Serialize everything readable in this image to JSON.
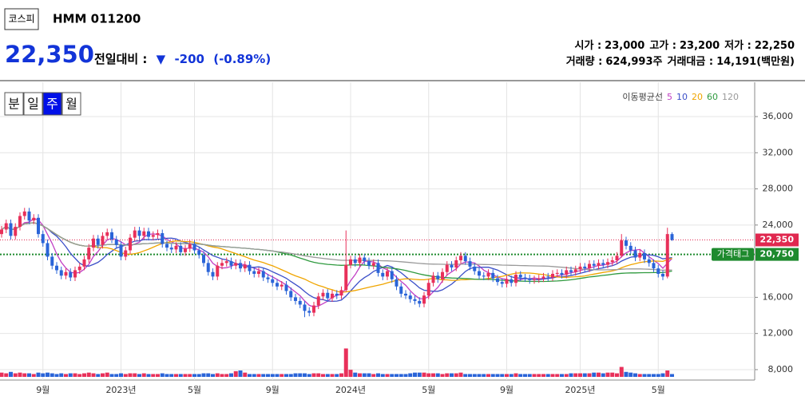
{
  "market": "코스피",
  "name": "HMM 011200",
  "price": {
    "value": 22350,
    "label": "22,350"
  },
  "change": {
    "label": "전일대비 :",
    "arrow": "▼",
    "value": -200,
    "percent": {
      "value": -0.89,
      "label": "(-0.89%)"
    }
  },
  "stats_rows": [
    [
      {
        "name": "시가 :",
        "value": "23,000"
      },
      {
        "name": "고가 :",
        "value": "23,200"
      },
      {
        "name": "저가 :",
        "value": "22,250"
      }
    ],
    [
      {
        "name": "거래량 :",
        "value": "624,993주"
      },
      {
        "name": "거래대금 :",
        "value": "14,191(백만원)"
      }
    ]
  ],
  "periods": [
    "분",
    "일",
    "주",
    "월"
  ],
  "selected_period": 2,
  "chart_data": {
    "type": "candlestick",
    "legend_title": "이동평균선",
    "moving_averages": [
      {
        "period": 5,
        "color": "#c23fc4"
      },
      {
        "period": 10,
        "color": "#3b4fc8"
      },
      {
        "period": 20,
        "color": "#f0a500"
      },
      {
        "period": 60,
        "color": "#2f9a3f"
      },
      {
        "period": 120,
        "color": "#9a9a9a"
      }
    ],
    "up_color": "#e8305a",
    "down_color": "#2a64d8",
    "ylim": [
      7200,
      39800
    ],
    "yticks": [
      {
        "value": 8000,
        "label": "8,000"
      },
      {
        "value": 12000,
        "label": "12,000"
      },
      {
        "value": 16000,
        "label": "16,000"
      },
      {
        "value": 24000,
        "label": "24,000"
      },
      {
        "value": 28000,
        "label": "28,000"
      },
      {
        "value": 32000,
        "label": "32,000"
      },
      {
        "value": 36000,
        "label": "36,000"
      }
    ],
    "grid": true,
    "price_lines": [
      {
        "value": 22350,
        "label": "22,350",
        "color": "#e0284f"
      },
      {
        "value": 20750,
        "label": "20,750",
        "tag": "가격태그",
        "color": "#1e8a2e"
      }
    ],
    "categories": [
      null,
      null,
      null,
      null,
      null,
      null,
      null,
      null,
      null,
      "9월",
      null,
      null,
      null,
      null,
      null,
      null,
      null,
      null,
      null,
      null,
      null,
      null,
      null,
      null,
      null,
      null,
      "2023년",
      null,
      null,
      null,
      null,
      null,
      null,
      null,
      null,
      null,
      null,
      null,
      null,
      null,
      null,
      null,
      "5월",
      null,
      null,
      null,
      null,
      null,
      null,
      null,
      null,
      null,
      null,
      null,
      null,
      null,
      null,
      null,
      null,
      "9월",
      null,
      null,
      null,
      null,
      null,
      null,
      null,
      null,
      null,
      null,
      null,
      null,
      null,
      null,
      null,
      null,
      "2024년",
      null,
      null,
      null,
      null,
      null,
      null,
      null,
      null,
      null,
      null,
      null,
      null,
      null,
      null,
      null,
      null,
      "5월",
      null,
      null,
      null,
      null,
      null,
      null,
      null,
      null,
      null,
      null,
      null,
      null,
      null,
      null,
      null,
      null,
      "9월",
      null,
      null,
      null,
      null,
      null,
      null,
      null,
      null,
      null,
      null,
      null,
      null,
      null,
      null,
      null,
      "2025년",
      null,
      null,
      null,
      null,
      null,
      null,
      null,
      null,
      null,
      null,
      null,
      null,
      null,
      null,
      null,
      null,
      "5월",
      null,
      null,
      null
    ],
    "open": [
      23000,
      23500,
      24200,
      22800,
      23800,
      25000,
      25500,
      24500,
      24800,
      23000,
      22000,
      20500,
      19500,
      19000,
      18400,
      18800,
      18200,
      19000,
      19400,
      20200,
      21500,
      22500,
      21800,
      22800,
      23200,
      22400,
      21800,
      20500,
      21200,
      22600,
      23400,
      22800,
      23300,
      22700,
      22900,
      23100,
      21900,
      21500,
      21300,
      21700,
      21000,
      21400,
      21900,
      21200,
      20700,
      19800,
      18800,
      18300,
      19500,
      19800,
      20000,
      19500,
      19800,
      19200,
      19600,
      18900,
      18600,
      18900,
      18200,
      18000,
      17600,
      17200,
      17400,
      16700,
      16000,
      15600,
      15200,
      14500,
      14300,
      15100,
      16100,
      16500,
      15900,
      16400,
      16200,
      16800,
      19600,
      20200,
      19800,
      20400,
      20000,
      19500,
      19800,
      18700,
      18300,
      18900,
      18000,
      17200,
      16400,
      16200,
      15800,
      15600,
      15300,
      16200,
      17600,
      18400,
      18000,
      18800,
      19600,
      19300,
      20100,
      20600,
      20000,
      19400,
      18900,
      18400,
      18300,
      18700,
      18100,
      17700,
      17500,
      18000,
      17600,
      18500,
      18200,
      18100,
      17900,
      18000,
      18100,
      18300,
      18200,
      18600,
      18700,
      18500,
      19000,
      18800,
      19100,
      19400,
      19200,
      19700,
      19500,
      19800,
      19600,
      19900,
      20100,
      20600,
      22300,
      21700,
      21200,
      20400,
      20900,
      20200,
      19800,
      19200,
      18600,
      18300,
      23000
    ],
    "high": [
      23900,
      24600,
      24600,
      24200,
      25400,
      25900,
      25900,
      25200,
      25200,
      23400,
      22400,
      20900,
      19900,
      19400,
      19200,
      19200,
      19400,
      19800,
      20600,
      21900,
      22900,
      22900,
      23200,
      23600,
      23600,
      22800,
      22200,
      21600,
      23000,
      23800,
      23800,
      23700,
      23700,
      23300,
      23500,
      23500,
      22300,
      21900,
      22100,
      22100,
      21800,
      22300,
      22300,
      21600,
      21100,
      20200,
      19200,
      19900,
      20200,
      20400,
      20400,
      20200,
      20200,
      20000,
      20000,
      19300,
      19300,
      19300,
      18600,
      18400,
      18000,
      17800,
      17800,
      17100,
      16400,
      16000,
      15600,
      14900,
      15500,
      16500,
      16900,
      16900,
      16800,
      16800,
      17200,
      23400,
      20600,
      20600,
      20800,
      20800,
      20400,
      20200,
      20200,
      19100,
      19300,
      19300,
      18400,
      17600,
      16800,
      16600,
      16200,
      16000,
      16600,
      18000,
      18800,
      18800,
      19200,
      20000,
      20000,
      20500,
      21000,
      21000,
      20400,
      19800,
      19300,
      18800,
      19100,
      19100,
      18500,
      18100,
      18400,
      18400,
      18900,
      18900,
      18600,
      18500,
      18400,
      18500,
      18700,
      18700,
      19000,
      19100,
      19100,
      19400,
      19400,
      19500,
      19800,
      19800,
      20100,
      20100,
      20200,
      20200,
      20300,
      20500,
      21000,
      23000,
      22700,
      22100,
      21600,
      21300,
      21300,
      20600,
      20200,
      19600,
      19000,
      23700,
      23200
    ],
    "low": [
      22600,
      23100,
      22400,
      22400,
      23400,
      24600,
      24100,
      24100,
      22600,
      21600,
      20100,
      19100,
      18600,
      18000,
      18000,
      17800,
      17800,
      18600,
      19000,
      19800,
      21100,
      21400,
      21400,
      22400,
      22000,
      21400,
      20100,
      20100,
      20800,
      22200,
      22400,
      22400,
      22300,
      22300,
      22500,
      21500,
      21100,
      20900,
      20900,
      20600,
      20600,
      21000,
      20800,
      20300,
      19400,
      18400,
      17900,
      17900,
      19100,
      19400,
      19100,
      19100,
      18800,
      18800,
      18500,
      18200,
      18200,
      17800,
      17600,
      17200,
      16800,
      16800,
      16300,
      15600,
      15200,
      14800,
      13800,
      13900,
      13900,
      14700,
      15700,
      15500,
      15500,
      15800,
      15800,
      16600,
      19200,
      19400,
      19400,
      19600,
      19100,
      19100,
      18300,
      17900,
      17900,
      17600,
      16800,
      16000,
      15800,
      15400,
      15200,
      14900,
      14900,
      15800,
      17200,
      17600,
      17600,
      18400,
      18900,
      18900,
      19700,
      19600,
      19000,
      18500,
      18000,
      17900,
      17900,
      17700,
      17300,
      17100,
      17100,
      17200,
      17200,
      17800,
      17700,
      17500,
      17500,
      17600,
      17700,
      17800,
      17800,
      18200,
      18100,
      18100,
      18400,
      18400,
      18700,
      18800,
      18800,
      19100,
      19100,
      19200,
      19200,
      19500,
      19700,
      20400,
      21300,
      20800,
      20000,
      20000,
      19800,
      19400,
      18800,
      18200,
      17900,
      18100,
      22250
    ],
    "close": [
      23500,
      24200,
      22800,
      23800,
      25000,
      25500,
      24500,
      24800,
      23000,
      22000,
      20500,
      19500,
      19000,
      18400,
      18800,
      18200,
      19000,
      19400,
      20200,
      21500,
      22500,
      21800,
      22800,
      23200,
      22400,
      21800,
      20500,
      21200,
      22600,
      23400,
      22800,
      23300,
      22700,
      22900,
      23100,
      21900,
      21500,
      21300,
      21700,
      21000,
      21400,
      21900,
      21200,
      20700,
      19800,
      18800,
      18300,
      19500,
      19800,
      20000,
      19500,
      19800,
      19200,
      19600,
      18900,
      18600,
      18900,
      18200,
      18000,
      17600,
      17200,
      17400,
      16700,
      16000,
      15600,
      15200,
      14500,
      14300,
      15100,
      16100,
      16500,
      15900,
      16400,
      16200,
      16800,
      19600,
      20200,
      19800,
      20400,
      20000,
      19500,
      19800,
      18700,
      18300,
      18900,
      18000,
      17200,
      16400,
      16200,
      15800,
      15600,
      15300,
      16200,
      17600,
      18400,
      18000,
      18800,
      19600,
      19300,
      20100,
      20600,
      20000,
      19400,
      18900,
      18400,
      18300,
      18700,
      18100,
      17700,
      17500,
      18000,
      17600,
      18500,
      18200,
      18100,
      17900,
      18000,
      18100,
      18300,
      18200,
      18600,
      18700,
      18500,
      19000,
      18800,
      19100,
      19400,
      19200,
      19700,
      19500,
      19800,
      19600,
      19900,
      20100,
      20600,
      22300,
      21700,
      21200,
      20400,
      20900,
      20200,
      19800,
      19200,
      18600,
      18300,
      23000,
      22350
    ],
    "volume": [
      6,
      5,
      7,
      5,
      6,
      5,
      5,
      4,
      6,
      5,
      6,
      5,
      4,
      5,
      4,
      5,
      5,
      4,
      5,
      6,
      5,
      4,
      5,
      6,
      4,
      4,
      5,
      4,
      5,
      5,
      4,
      5,
      4,
      4,
      4,
      5,
      4,
      4,
      4,
      4,
      4,
      4,
      4,
      4,
      5,
      5,
      4,
      5,
      4,
      4,
      5,
      8,
      9,
      6,
      4,
      4,
      4,
      4,
      4,
      4,
      4,
      4,
      4,
      4,
      5,
      5,
      5,
      4,
      5,
      5,
      4,
      4,
      4,
      4,
      5,
      40,
      10,
      6,
      5,
      5,
      5,
      4,
      5,
      4,
      4,
      4,
      4,
      4,
      4,
      5,
      6,
      6,
      6,
      5,
      5,
      5,
      4,
      5,
      5,
      5,
      6,
      4,
      4,
      4,
      4,
      4,
      4,
      4,
      4,
      4,
      4,
      4,
      5,
      4,
      4,
      4,
      4,
      4,
      4,
      4,
      4,
      4,
      4,
      4,
      5,
      5,
      5,
      5,
      5,
      6,
      6,
      5,
      6,
      6,
      5,
      14,
      7,
      6,
      5,
      4,
      4,
      4,
      4,
      4,
      5,
      9,
      4
    ],
    "vlim": [
      0,
      45
    ]
  }
}
